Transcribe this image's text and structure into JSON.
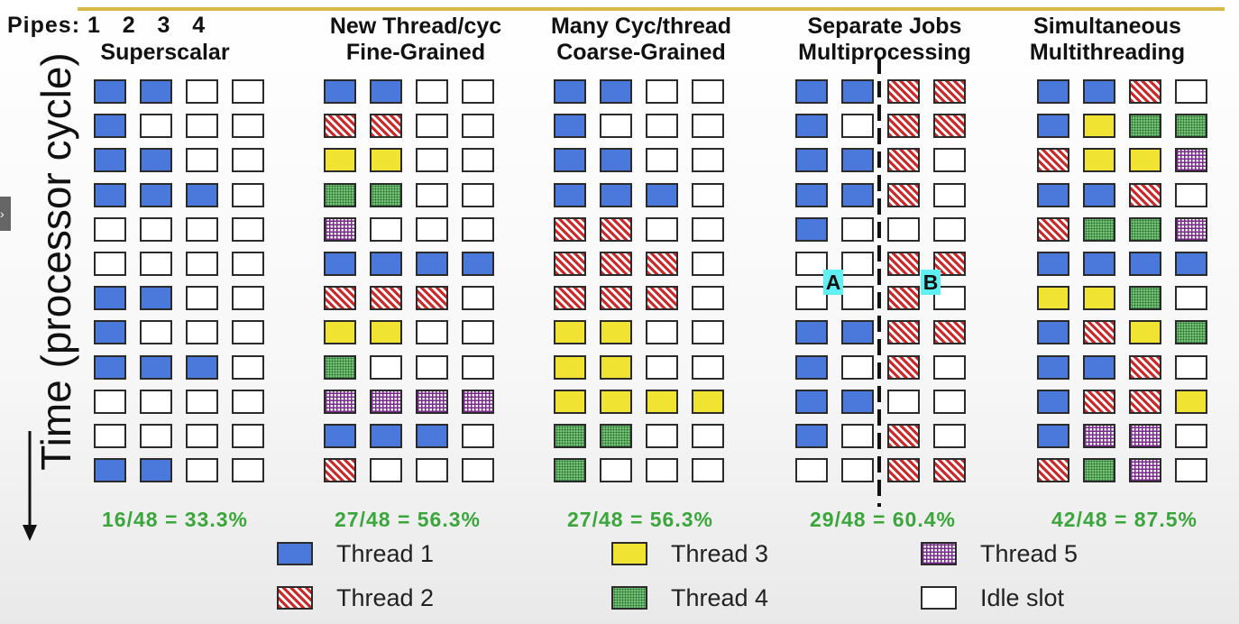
{
  "header": {
    "pipes_label": "Pipes: 1   2   3   4",
    "time_axis_label": "Time (processor cycle)"
  },
  "columns": [
    {
      "title_line1": "",
      "title_line2": "Superscalar",
      "utilization": "16/48 = 33.3%",
      "rows": [
        [
          "t1",
          "t1",
          "idle",
          "idle"
        ],
        [
          "t1",
          "idle",
          "idle",
          "idle"
        ],
        [
          "t1",
          "t1",
          "idle",
          "idle"
        ],
        [
          "t1",
          "t1",
          "t1",
          "idle"
        ],
        [
          "idle",
          "idle",
          "idle",
          "idle"
        ],
        [
          "idle",
          "idle",
          "idle",
          "idle"
        ],
        [
          "t1",
          "t1",
          "idle",
          "idle"
        ],
        [
          "t1",
          "idle",
          "idle",
          "idle"
        ],
        [
          "t1",
          "t1",
          "t1",
          "idle"
        ],
        [
          "idle",
          "idle",
          "idle",
          "idle"
        ],
        [
          "idle",
          "idle",
          "idle",
          "idle"
        ],
        [
          "t1",
          "t1",
          "idle",
          "idle"
        ]
      ]
    },
    {
      "title_line1": "New Thread/cyc",
      "title_line2": "Fine-Grained",
      "utilization": "27/48 = 56.3%",
      "rows": [
        [
          "t1",
          "t1",
          "idle",
          "idle"
        ],
        [
          "t2",
          "t2",
          "idle",
          "idle"
        ],
        [
          "t3",
          "t3",
          "idle",
          "idle"
        ],
        [
          "t4",
          "t4",
          "idle",
          "idle"
        ],
        [
          "t5",
          "idle",
          "idle",
          "idle"
        ],
        [
          "t1",
          "t1",
          "t1",
          "t1"
        ],
        [
          "t2",
          "t2",
          "t2",
          "idle"
        ],
        [
          "t3",
          "t3",
          "idle",
          "idle"
        ],
        [
          "t4",
          "idle",
          "idle",
          "idle"
        ],
        [
          "t5",
          "t5",
          "t5",
          "t5"
        ],
        [
          "t1",
          "t1",
          "t1",
          "idle"
        ],
        [
          "t2",
          "idle",
          "idle",
          "idle"
        ]
      ]
    },
    {
      "title_line1": "Many Cyc/thread",
      "title_line2": "Coarse-Grained",
      "utilization": "27/48 = 56.3%",
      "rows": [
        [
          "t1",
          "t1",
          "idle",
          "idle"
        ],
        [
          "t1",
          "idle",
          "idle",
          "idle"
        ],
        [
          "t1",
          "t1",
          "idle",
          "idle"
        ],
        [
          "t1",
          "t1",
          "t1",
          "idle"
        ],
        [
          "t2",
          "t2",
          "idle",
          "idle"
        ],
        [
          "t2",
          "t2",
          "t2",
          "idle"
        ],
        [
          "t2",
          "t2",
          "t2",
          "idle"
        ],
        [
          "t3",
          "t3",
          "idle",
          "idle"
        ],
        [
          "t3",
          "t3",
          "idle",
          "idle"
        ],
        [
          "t3",
          "t3",
          "t3",
          "t3"
        ],
        [
          "t4",
          "t4",
          "idle",
          "idle"
        ],
        [
          "t4",
          "idle",
          "idle",
          "idle"
        ]
      ]
    },
    {
      "title_line1": "Separate Jobs",
      "title_line2": "Multiprocessing",
      "utilization": "29/48 = 60.4%",
      "rows": [
        [
          "t1",
          "t1",
          "t2",
          "t2"
        ],
        [
          "t1",
          "idle",
          "t2",
          "t2"
        ],
        [
          "t1",
          "t1",
          "t2",
          "idle"
        ],
        [
          "t1",
          "t1",
          "t2",
          "idle"
        ],
        [
          "t1",
          "idle",
          "idle",
          "idle"
        ],
        [
          "idle",
          "idle",
          "t2",
          "t2"
        ],
        [
          "idle",
          "idle",
          "t2",
          "idle"
        ],
        [
          "t1",
          "t1",
          "t2",
          "t2"
        ],
        [
          "t1",
          "idle",
          "t2",
          "idle"
        ],
        [
          "t1",
          "t1",
          "idle",
          "idle"
        ],
        [
          "t1",
          "idle",
          "t2",
          "idle"
        ],
        [
          "idle",
          "idle",
          "t2",
          "t2"
        ]
      ],
      "marker_a": "A",
      "marker_b": "B"
    },
    {
      "title_line1": "Simultaneous",
      "title_line2": "Multithreading",
      "utilization": "42/48 = 87.5%",
      "rows": [
        [
          "t1",
          "t1",
          "t2",
          "idle"
        ],
        [
          "t1",
          "t3",
          "t4",
          "t4"
        ],
        [
          "t2",
          "t3",
          "t3",
          "t5"
        ],
        [
          "t1",
          "t1",
          "t2",
          "idle"
        ],
        [
          "t2",
          "t4",
          "t4",
          "t5"
        ],
        [
          "t1",
          "t1",
          "t1",
          "t1"
        ],
        [
          "t3",
          "t3",
          "t4",
          "idle"
        ],
        [
          "t1",
          "t2",
          "t3",
          "t4"
        ],
        [
          "t1",
          "t1",
          "t2",
          "idle"
        ],
        [
          "t1",
          "t2",
          "t2",
          "t3"
        ],
        [
          "t1",
          "t5",
          "t5",
          "idle"
        ],
        [
          "t2",
          "t4",
          "t5",
          "idle"
        ]
      ]
    }
  ],
  "legend": [
    {
      "key": "t1",
      "label": "Thread 1"
    },
    {
      "key": "t2",
      "label": "Thread 2"
    },
    {
      "key": "t3",
      "label": "Thread 3"
    },
    {
      "key": "t4",
      "label": "Thread 4"
    },
    {
      "key": "t5",
      "label": "Thread 5"
    },
    {
      "key": "idle",
      "label": "Idle slot"
    }
  ],
  "colors": {
    "thread1": "#4a78db",
    "thread2": "#cc2a2a",
    "thread3": "#f0e332",
    "thread4": "#7fc77f",
    "thread5": "#7a2a8a",
    "utilization_text": "#3ba63b",
    "marker_highlight": "#5ef0f2"
  }
}
